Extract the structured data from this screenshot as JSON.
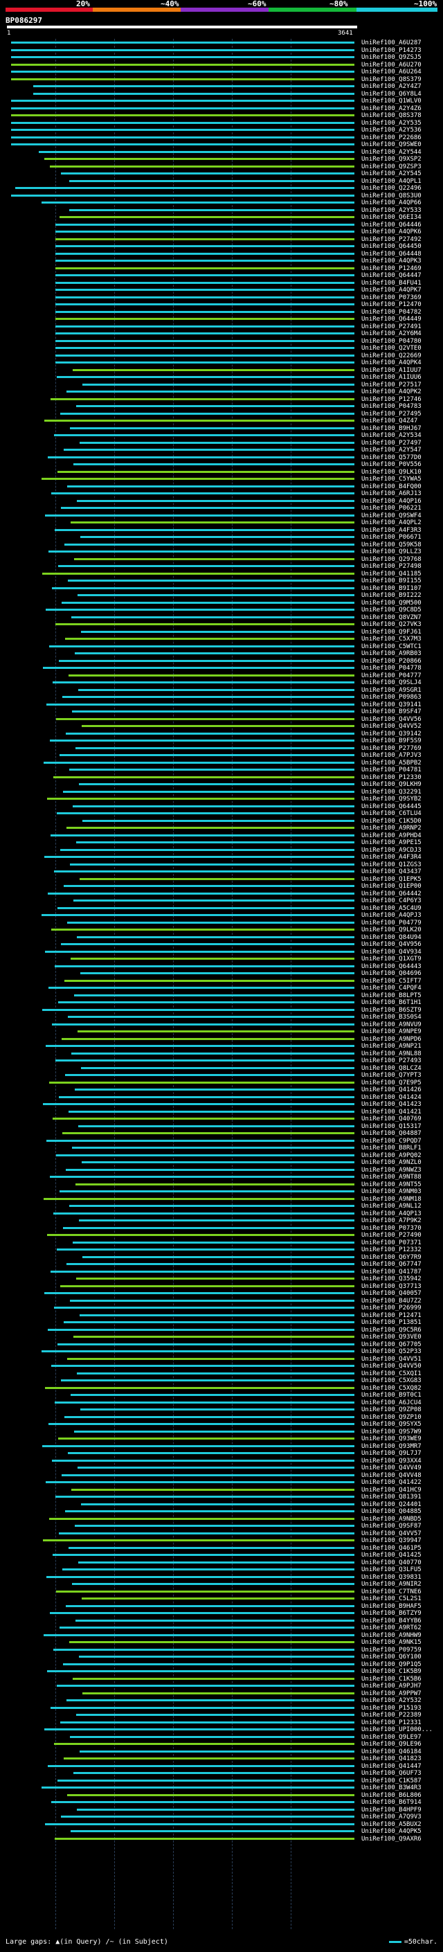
{
  "scale": {
    "ticks": [
      "20%",
      "~40%",
      "~60%",
      "~80%",
      "~100%"
    ],
    "colors": [
      "#e0142a",
      "#ee7a10",
      "#8a2ec8",
      "#14b83a",
      "#1ecadb"
    ]
  },
  "query": {
    "id": "BP086297",
    "start": "1",
    "end": "3641"
  },
  "bar_colors": {
    "high": "#1ecadb",
    "mid": "#7cd21e"
  },
  "hits": [
    "UniRef100_A6U287",
    "UniRef100_P14273",
    "UniRef100_Q9ZSJ5",
    "UniRef100_A6U270",
    "UniRef100_A6U264",
    "UniRef100_Q8S379",
    "UniRef100_A2Y4Z7",
    "UniRef100_Q6Y8L4",
    "UniRef100_Q1WLV0",
    "UniRef100_A2Y4Z6",
    "UniRef100_Q8S378",
    "UniRef100_A2Y535",
    "UniRef100_A2Y536",
    "UniRef100_P22686",
    "UniRef100_Q9SWE0",
    "UniRef100_A2Y544",
    "UniRef100_Q9XSP2",
    "UniRef100_Q9ZSP3",
    "UniRef100_A2Y545",
    "UniRef100_A4QPL1",
    "UniRef100_Q22496",
    "UniRef100_Q8S3U0",
    "UniRef100_A4QP66",
    "UniRef100_A2Y533",
    "UniRef100_Q6EI34",
    "UniRef100_Q64446",
    "UniRef100_A4QPK6",
    "UniRef100_P27492",
    "UniRef100_Q64450",
    "UniRef100_Q64448",
    "UniRef100_A4QPK3",
    "UniRef100_P12469",
    "UniRef100_Q64447",
    "UniRef100_B4FU41",
    "UniRef100_A4QPK7",
    "UniRef100_P07369",
    "UniRef100_P12470",
    "UniRef100_P04782",
    "UniRef100_Q64449",
    "UniRef100_P27491",
    "UniRef100_A2Y6M4",
    "UniRef100_P04780",
    "UniRef100_Q2VTE0",
    "UniRef100_Q22669",
    "UniRef100_A4QPK4",
    "UniRef100_A1IUU7",
    "UniRef100_A1IUU6",
    "UniRef100_P27517",
    "UniRef100_A4QPK2",
    "UniRef100_P12746",
    "UniRef100_P04783",
    "UniRef100_P27495",
    "UniRef100_Q4Z47",
    "UniRef100_B9HJ67",
    "UniRef100_A2Y534",
    "UniRef100_P27497",
    "UniRef100_A2Y547",
    "UniRef100_Q577D0",
    "UniRef100_P0V556",
    "UniRef100_Q9LK10",
    "UniRef100_C5YWA5",
    "UniRef100_B4FQ00",
    "UniRef100_A6RJ13",
    "UniRef100_A4QP16",
    "UniRef100_P06221",
    "UniRef100_Q9SWF4",
    "UniRef100_A4QPL2",
    "UniRef100_A4F3R3",
    "UniRef100_P06671",
    "UniRef100_Q59K58",
    "UniRef100_Q9LLZ3",
    "UniRef100_Q29768",
    "UniRef100_P27498",
    "UniRef100_Q41185",
    "UniRef100_B9I155",
    "UniRef100_B9I107",
    "UniRef100_B9I222",
    "UniRef100_Q9M500",
    "UniRef100_Q9C8D5",
    "UniRef100_Q8VZN7",
    "UniRef100_Q27VK3",
    "UniRef100_Q9FJ61",
    "UniRef100_C5X7M3",
    "UniRef100_C5WTC1",
    "UniRef100_A9RB03",
    "UniRef100_P20866",
    "UniRef100_P04778",
    "UniRef100_P04777",
    "UniRef100_Q9SLJ4",
    "UniRef100_A9SGR1",
    "UniRef100_P09863",
    "UniRef100_Q39141",
    "UniRef100_B9SF47",
    "UniRef100_Q4VV56",
    "UniRef100_Q4VV52",
    "UniRef100_Q39142",
    "UniRef100_B9F5S9",
    "UniRef100_P27769",
    "UniRef100_A7PJV3",
    "UniRef100_A5BPB2",
    "UniRef100_P04781",
    "UniRef100_P12330",
    "UniRef100_Q9LKH9",
    "UniRef100_Q32291",
    "UniRef100_Q9SYB2",
    "UniRef100_Q64445",
    "UniRef100_C6TLU4",
    "UniRef100_C1K5D0",
    "UniRef100_A9RNP2",
    "UniRef100_A9PHD4",
    "UniRef100_A9PE15",
    "UniRef100_A9CDJ3",
    "UniRef100_A4F3R4",
    "UniRef100_Q1ZGS3",
    "UniRef100_Q43437",
    "UniRef100_Q1EPK5",
    "UniRef100_Q1EP00",
    "UniRef100_Q64442",
    "UniRef100_C4P6Y3",
    "UniRef100_A5C4U9",
    "UniRef100_A4QPJ3",
    "UniRef100_P04779",
    "UniRef100_Q9LK20",
    "UniRef100_Q84U94",
    "UniRef100_Q4V956",
    "UniRef100_Q4V934",
    "UniRef100_Q1XGT9",
    "UniRef100_Q64443",
    "UniRef100_Q04696",
    "UniRef100_C5IFT7",
    "UniRef100_C4PQF4",
    "UniRef100_B8LPT5",
    "UniRef100_B6T1H1",
    "UniRef100_B6SZT9",
    "UniRef100_B3S0S4",
    "UniRef100_A9NVU9",
    "UniRef100_A9NPE9",
    "UniRef100_A9NPD6",
    "UniRef100_A9NP21",
    "UniRef100_A9NL88",
    "UniRef100_P27493",
    "UniRef100_Q8LCZ4",
    "UniRef100_Q7YPT3",
    "UniRef100_Q7E9P5",
    "UniRef100_Q41426",
    "UniRef100_Q41424",
    "UniRef100_Q41423",
    "UniRef100_Q41421",
    "UniRef100_Q40769",
    "UniRef100_Q15317",
    "UniRef100_Q04887",
    "UniRef100_C9PQD7",
    "UniRef100_B8RLF1",
    "UniRef100_A9PQ02",
    "UniRef100_A9NZL0",
    "UniRef100_A9NWZ3",
    "UniRef100_A9NT88",
    "UniRef100_A9NT55",
    "UniRef100_A9NM03",
    "UniRef100_A9NM18",
    "UniRef100_A9NL12",
    "UniRef100_A4QP13",
    "UniRef100_A7P9K2",
    "UniRef100_P07370",
    "UniRef100_P27490",
    "UniRef100_P07371",
    "UniRef100_P12332",
    "UniRef100_Q6Y7R9",
    "UniRef100_Q67747",
    "UniRef100_Q41787",
    "UniRef100_Q35942",
    "UniRef100_Q37713",
    "UniRef100_Q40057",
    "UniRef100_B4U7Z2",
    "UniRef100_P26999",
    "UniRef100_P12471",
    "UniRef100_P13851",
    "UniRef100_Q9C5R6",
    "UniRef100_Q93VE0",
    "UniRef100_Q67705",
    "UniRef100_Q52P33",
    "UniRef100_Q4VV51",
    "UniRef100_Q4VV50",
    "UniRef100_C5XQI1",
    "UniRef100_C5XG83",
    "UniRef100_C5XQ82",
    "UniRef100_B9T0C1",
    "UniRef100_A6JCU4",
    "UniRef100_Q9ZP08",
    "UniRef100_Q9ZP10",
    "UniRef100_Q9SYX5",
    "UniRef100_Q9S7W9",
    "UniRef100_Q93WE9",
    "UniRef100_Q93MR7",
    "UniRef100_Q9L7J7",
    "UniRef100_Q93XX4",
    "UniRef100_Q4VV49",
    "UniRef100_Q4VV48",
    "UniRef100_Q41422",
    "UniRef100_Q41HC9",
    "UniRef100_Q81391",
    "UniRef100_Q24401",
    "UniRef100_Q04885",
    "UniRef100_A9NBD5",
    "UniRef100_Q9SF87",
    "UniRef100_Q4VV57",
    "UniRef100_Q39947",
    "UniRef100_Q461P5",
    "UniRef100_Q41425",
    "UniRef100_Q40770",
    "UniRef100_Q3LFU5",
    "UniRef100_Q39831",
    "UniRef100_A9NIR2",
    "UniRef100_C7TNE6",
    "UniRef100_C5L2S1",
    "UniRef100_B9HAF5",
    "UniRef100_B6TZY9",
    "UniRef100_B4YYB6",
    "UniRef100_A9RT62",
    "UniRef100_A9NHW9",
    "UniRef100_A9NK15",
    "UniRef100_P09759",
    "UniRef100_Q6Y100",
    "UniRef100_Q9P1Q5",
    "UniRef100_C1K5B9",
    "UniRef100_C1K5B6",
    "UniRef100_A9PJH7",
    "UniRef100_A9PPW7",
    "UniRef100_A2Y532",
    "UniRef100_P15193",
    "UniRef100_P22389",
    "UniRef100_P12331",
    "UniRef100_UPI000...",
    "UniRef100_Q9LE97",
    "UniRef100_Q9LE96",
    "UniRef100_Q46184",
    "UniRef100_Q41823",
    "UniRef100_Q41447",
    "UniRef100_Q6UF73",
    "UniRef100_C1K587",
    "UniRef100_B3W4R3",
    "UniRef100_B6L806",
    "UniRef100_B6T914",
    "UniRef100_B4HPF9",
    "UniRef100_A7Q9V3",
    "UniRef100_A5BUX2",
    "UniRef100_A4QPK5",
    "UniRef100_Q9AXR6"
  ],
  "legend": {
    "large_gaps_label": "Large gaps:",
    "gap_in_query": "(in Query)",
    "gap_in_subject": "(in Subject)",
    "scale_label": "=50char."
  }
}
